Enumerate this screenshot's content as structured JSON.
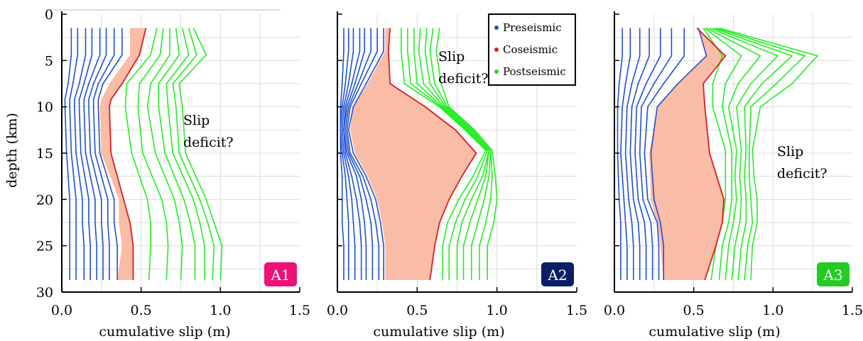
{
  "figure": {
    "ylabel": "depth (km)",
    "xlabel": "cumulative slip (m)",
    "x_ticks": [
      "0.0",
      "0.5",
      "1.0",
      "1.5"
    ],
    "y_ticks": [
      "0",
      "5",
      "10",
      "15",
      "20",
      "25",
      "30"
    ]
  },
  "legend": {
    "entries": [
      {
        "label": "Preseismic",
        "color": "#1e4fd6"
      },
      {
        "label": "Coseismic",
        "color": "#e31a1c"
      },
      {
        "label": "Postseismic",
        "color": "#22dd22"
      }
    ]
  },
  "colors": {
    "pre": "#1e4fd6",
    "co": "#e31a1c",
    "fill": "#f9bca6",
    "post": "#22ee22",
    "grid": "#dddddd"
  },
  "chart_data": [
    {
      "type": "line",
      "panel": "A1",
      "badge_color": "#ee1177",
      "xlabel": "cumulative slip (m)",
      "ylabel": "depth (km)",
      "xlim": [
        0,
        1.5
      ],
      "ylim": [
        30,
        0
      ],
      "annotation": [
        "Slip",
        "deficit?"
      ],
      "depths": [
        1.5,
        4.4,
        7.5,
        9.2,
        10.0,
        15.0,
        20.0,
        22.5,
        25.0,
        28.7
      ],
      "preseismic": [
        [
          0.06,
          0.06,
          0.04,
          0.02,
          0.02,
          0.03,
          0.05,
          0.05,
          0.05,
          0.05
        ],
        [
          0.1,
          0.1,
          0.07,
          0.05,
          0.05,
          0.06,
          0.09,
          0.09,
          0.09,
          0.09
        ],
        [
          0.15,
          0.15,
          0.11,
          0.08,
          0.08,
          0.09,
          0.13,
          0.13,
          0.14,
          0.14
        ],
        [
          0.19,
          0.19,
          0.14,
          0.11,
          0.11,
          0.12,
          0.17,
          0.17,
          0.18,
          0.18
        ],
        [
          0.24,
          0.24,
          0.17,
          0.14,
          0.14,
          0.15,
          0.21,
          0.21,
          0.22,
          0.22
        ],
        [
          0.28,
          0.28,
          0.2,
          0.17,
          0.17,
          0.18,
          0.25,
          0.25,
          0.26,
          0.26
        ],
        [
          0.33,
          0.33,
          0.23,
          0.2,
          0.2,
          0.21,
          0.29,
          0.29,
          0.3,
          0.3
        ],
        [
          0.38,
          0.38,
          0.26,
          0.23,
          0.23,
          0.24,
          0.33,
          0.33,
          0.35,
          0.35
        ]
      ],
      "coseismic": [
        0.53,
        0.49,
        0.38,
        0.31,
        0.3,
        0.31,
        0.39,
        0.43,
        0.45,
        0.45
      ],
      "coseismic_fill_base": [
        0.43,
        0.43,
        0.3,
        0.25,
        0.24,
        0.25,
        0.36,
        0.36,
        0.38,
        0.35
      ],
      "postseismic_depths": [
        1.5,
        4.4,
        7.5,
        10.0,
        15.0,
        20.0,
        22.5,
        25.0,
        28.7
      ],
      "postseismic": [
        [
          0.6,
          0.56,
          0.41,
          0.4,
          0.44,
          0.54,
          0.56,
          0.56,
          0.55
        ],
        [
          0.64,
          0.62,
          0.49,
          0.48,
          0.51,
          0.63,
          0.66,
          0.67,
          0.66
        ],
        [
          0.68,
          0.68,
          0.56,
          0.54,
          0.59,
          0.71,
          0.74,
          0.76,
          0.75
        ],
        [
          0.72,
          0.74,
          0.61,
          0.61,
          0.65,
          0.77,
          0.81,
          0.84,
          0.84
        ],
        [
          0.76,
          0.8,
          0.66,
          0.67,
          0.7,
          0.83,
          0.87,
          0.9,
          0.9
        ],
        [
          0.8,
          0.85,
          0.7,
          0.72,
          0.74,
          0.87,
          0.92,
          0.96,
          0.95
        ],
        [
          0.83,
          0.91,
          0.74,
          0.76,
          0.78,
          0.91,
          0.96,
          1.01,
          1.0
        ]
      ]
    },
    {
      "type": "line",
      "panel": "A2",
      "badge_color": "#0a1f66",
      "xlabel": "cumulative slip (m)",
      "xlim": [
        0,
        1.5
      ],
      "ylim": [
        30,
        0
      ],
      "annotation": [
        "Slip",
        "deficit?"
      ],
      "depths": [
        1.5,
        4.0,
        7.5,
        10.0,
        12.5,
        15.0,
        17.5,
        20.0,
        22.5,
        25.0,
        28.7
      ],
      "preseismic": [
        [
          0.04,
          0.04,
          0.03,
          0.02,
          0.02,
          0.02,
          0.03,
          0.03,
          0.03,
          0.04,
          0.04
        ],
        [
          0.07,
          0.07,
          0.05,
          0.03,
          0.02,
          0.03,
          0.05,
          0.06,
          0.07,
          0.07,
          0.07
        ],
        [
          0.1,
          0.1,
          0.07,
          0.04,
          0.03,
          0.04,
          0.07,
          0.09,
          0.1,
          0.11,
          0.11
        ],
        [
          0.14,
          0.14,
          0.09,
          0.05,
          0.04,
          0.05,
          0.09,
          0.12,
          0.14,
          0.15,
          0.15
        ],
        [
          0.17,
          0.17,
          0.11,
          0.06,
          0.04,
          0.06,
          0.12,
          0.15,
          0.17,
          0.18,
          0.18
        ],
        [
          0.21,
          0.21,
          0.13,
          0.07,
          0.05,
          0.07,
          0.14,
          0.18,
          0.21,
          0.22,
          0.22
        ],
        [
          0.25,
          0.25,
          0.15,
          0.08,
          0.06,
          0.08,
          0.16,
          0.21,
          0.24,
          0.26,
          0.26
        ],
        [
          0.29,
          0.29,
          0.18,
          0.1,
          0.07,
          0.1,
          0.18,
          0.24,
          0.27,
          0.29,
          0.29
        ]
      ],
      "coseismic": [
        0.33,
        0.32,
        0.33,
        0.55,
        0.74,
        0.87,
        0.78,
        0.7,
        0.64,
        0.61,
        0.58
      ],
      "coseismic_fill_base": [
        0.3,
        0.3,
        0.19,
        0.1,
        0.08,
        0.11,
        0.19,
        0.25,
        0.28,
        0.3,
        0.3
      ],
      "postseismic_depths": [
        1.5,
        4.0,
        7.5,
        10.0,
        12.5,
        14.7,
        17.5,
        20.0,
        22.5,
        25.0,
        28.7
      ],
      "postseismic": [
        [
          0.4,
          0.4,
          0.42,
          0.64,
          0.8,
          0.93,
          0.85,
          0.76,
          0.69,
          0.66,
          0.66
        ],
        [
          0.44,
          0.44,
          0.46,
          0.65,
          0.81,
          0.94,
          0.88,
          0.8,
          0.74,
          0.7,
          0.7
        ],
        [
          0.48,
          0.48,
          0.5,
          0.66,
          0.82,
          0.95,
          0.91,
          0.84,
          0.78,
          0.75,
          0.75
        ],
        [
          0.52,
          0.51,
          0.54,
          0.67,
          0.83,
          0.95,
          0.93,
          0.88,
          0.83,
          0.79,
          0.79
        ],
        [
          0.56,
          0.55,
          0.58,
          0.68,
          0.84,
          0.96,
          0.95,
          0.92,
          0.88,
          0.84,
          0.84
        ],
        [
          0.6,
          0.58,
          0.61,
          0.69,
          0.85,
          0.96,
          0.97,
          0.96,
          0.93,
          0.89,
          0.89
        ],
        [
          0.64,
          0.62,
          0.65,
          0.7,
          0.86,
          0.97,
          0.99,
          1.0,
          0.98,
          0.94,
          0.94
        ]
      ]
    },
    {
      "type": "line",
      "panel": "A3",
      "badge_color": "#22cc22",
      "xlabel": "cumulative slip (m)",
      "xlim": [
        0,
        1.5
      ],
      "ylim": [
        30,
        0
      ],
      "annotation": [
        "Slip",
        "deficit?"
      ],
      "depths": [
        1.5,
        4.5,
        7.5,
        10.0,
        15.0,
        20.0,
        22.5,
        25.0,
        28.7
      ],
      "preseismic": [
        [
          0.05,
          0.05,
          0.03,
          0.02,
          0.02,
          0.03,
          0.04,
          0.04,
          0.04
        ],
        [
          0.1,
          0.1,
          0.07,
          0.05,
          0.04,
          0.06,
          0.07,
          0.08,
          0.08
        ],
        [
          0.16,
          0.16,
          0.11,
          0.08,
          0.07,
          0.09,
          0.11,
          0.12,
          0.12
        ],
        [
          0.22,
          0.22,
          0.15,
          0.11,
          0.1,
          0.12,
          0.15,
          0.16,
          0.16
        ],
        [
          0.29,
          0.29,
          0.2,
          0.14,
          0.13,
          0.15,
          0.19,
          0.2,
          0.2
        ],
        [
          0.36,
          0.36,
          0.25,
          0.17,
          0.16,
          0.18,
          0.23,
          0.24,
          0.24
        ],
        [
          0.44,
          0.44,
          0.31,
          0.21,
          0.19,
          0.21,
          0.27,
          0.28,
          0.28
        ],
        [
          0.53,
          0.58,
          0.4,
          0.27,
          0.23,
          0.25,
          0.29,
          0.31,
          0.31
        ]
      ],
      "coseismic": [
        0.52,
        0.7,
        0.56,
        0.57,
        0.6,
        0.69,
        0.68,
        0.64,
        0.57
      ],
      "coseismic_fill_base": [
        0.53,
        0.58,
        0.4,
        0.27,
        0.22,
        0.23,
        0.27,
        0.29,
        0.31
      ],
      "postseismic_depths": [
        1.5,
        4.5,
        7.5,
        10.0,
        14.7,
        17.5,
        20.0,
        22.5,
        25.0,
        28.7
      ],
      "postseismic": [
        [
          0.56,
          0.68,
          0.62,
          0.62,
          0.7,
          0.7,
          0.7,
          0.68,
          0.64,
          0.61
        ],
        [
          0.57,
          0.8,
          0.7,
          0.68,
          0.74,
          0.74,
          0.74,
          0.72,
          0.68,
          0.66
        ],
        [
          0.58,
          0.92,
          0.78,
          0.72,
          0.77,
          0.76,
          0.77,
          0.75,
          0.72,
          0.7
        ],
        [
          0.6,
          1.03,
          0.86,
          0.77,
          0.8,
          0.79,
          0.8,
          0.79,
          0.76,
          0.74
        ],
        [
          0.62,
          1.12,
          0.93,
          0.82,
          0.83,
          0.82,
          0.83,
          0.83,
          0.8,
          0.78
        ],
        [
          0.64,
          1.2,
          1.02,
          0.86,
          0.85,
          0.85,
          0.86,
          0.87,
          0.84,
          0.82
        ],
        [
          0.66,
          1.28,
          1.12,
          0.92,
          0.87,
          0.88,
          0.9,
          0.9,
          0.87,
          0.86
        ]
      ]
    }
  ]
}
